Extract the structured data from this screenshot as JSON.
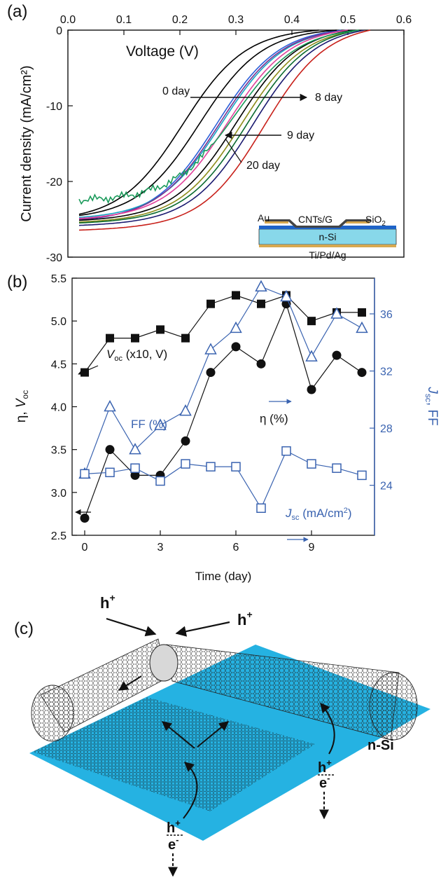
{
  "panel_labels": {
    "a": "(a)",
    "b": "(b)",
    "c": "(c)"
  },
  "colors": {
    "black": "#111111",
    "blue_axis": "#3a63b0",
    "substrate": "#88d8ea",
    "gold": "#d7a84f",
    "green": "#1a9a5a",
    "nsi_sheet": "#19aee0"
  },
  "chart_data": [
    {
      "type": "line",
      "panel": "(a)",
      "xlabel": "Voltage (V)",
      "ylabel": "Current density (mA/cm²)",
      "xlim": [
        0.0,
        0.6
      ],
      "ylim": [
        -30,
        0
      ],
      "x_ticks": [
        "0.0",
        "0.1",
        "0.2",
        "0.3",
        "0.4",
        "0.5",
        "0.6"
      ],
      "x_tick_values": [
        0.0,
        0.1,
        0.2,
        0.3,
        0.4,
        0.5,
        0.6
      ],
      "y_ticks": [
        "0",
        "-10",
        "-20",
        "-30"
      ],
      "y_tick_values": [
        0,
        -10,
        -20,
        -30
      ],
      "x_axis_position": "top",
      "grid": false,
      "annotations": [
        "0 day",
        "8 day",
        "9 day",
        "20 day"
      ],
      "inset": {
        "labels": {
          "au": "Au",
          "cnt": "CNTs/G",
          "sio2": "SiO",
          "sio2_sub": "2",
          "nsi": "n-Si",
          "contact": "Ti/Pd/Ag"
        }
      },
      "series": [
        {
          "color": "#000000",
          "jsc": -25.2,
          "v_mid": 0.205,
          "voc": 0.45,
          "noisy": false
        },
        {
          "color": "#2b5fd9",
          "jsc": -25.4,
          "v_mid": 0.265,
          "voc": 0.49,
          "noisy": false
        },
        {
          "color": "#16a4c4",
          "jsc": -25.0,
          "v_mid": 0.275,
          "voc": 0.5,
          "noisy": false
        },
        {
          "color": "#7a2f90",
          "jsc": -25.3,
          "v_mid": 0.27,
          "voc": 0.5,
          "noisy": false
        },
        {
          "color": "#e0409a",
          "jsc": -25.1,
          "v_mid": 0.285,
          "voc": 0.5,
          "noisy": false
        },
        {
          "color": "#000000",
          "jsc": -25.3,
          "v_mid": 0.3,
          "voc": 0.51,
          "noisy": false
        },
        {
          "color": "#000000",
          "jsc": -25.0,
          "v_mid": 0.235,
          "voc": 0.48,
          "noisy": false
        },
        {
          "color": "#8c8c1a",
          "jsc": -25.5,
          "v_mid": 0.31,
          "voc": 0.52,
          "noisy": false
        },
        {
          "color": "#0a6a30",
          "jsc": -25.6,
          "v_mid": 0.32,
          "voc": 0.52,
          "noisy": false
        },
        {
          "color": "#1a9a5a",
          "jsc": -22.6,
          "v_mid": 0.3,
          "voc": 0.52,
          "noisy": true
        },
        {
          "color": "#1a1a70",
          "jsc": -25.9,
          "v_mid": 0.33,
          "voc": 0.53,
          "noisy": false
        },
        {
          "color": "#c8201a",
          "jsc": -26.5,
          "v_mid": 0.35,
          "voc": 0.54,
          "noisy": false
        }
      ]
    },
    {
      "type": "line",
      "panel": "(b)",
      "xlabel": "Time (day)",
      "ylabel_left": "η, V_oc",
      "ylabel_right": "J_sc, FF",
      "xlim": [
        -0.5,
        11.5
      ],
      "ylim_left": [
        2.5,
        5.5
      ],
      "ylim_right": [
        20.5,
        38.5
      ],
      "x_ticks": [
        "0",
        "3",
        "6",
        "9"
      ],
      "x_tick_values": [
        0,
        3,
        6,
        9
      ],
      "y_ticks_left": [
        "2.5",
        "3.0",
        "3.5",
        "4.0",
        "4.5",
        "5.0",
        "5.5"
      ],
      "y_tick_values_left": [
        2.5,
        3.0,
        3.5,
        4.0,
        4.5,
        5.0,
        5.5
      ],
      "y_ticks_right": [
        "24",
        "28",
        "32",
        "36"
      ],
      "y_tick_values_right": [
        24,
        28,
        32,
        36
      ],
      "grid": false,
      "x": [
        0,
        1,
        2,
        3,
        4,
        5,
        6,
        7,
        8,
        9,
        10,
        11
      ],
      "series": [
        {
          "name": "V_oc (x10, V)",
          "axis": "left",
          "marker": "filled-square",
          "color": "#111111",
          "values": [
            4.4,
            4.8,
            4.8,
            4.9,
            4.8,
            5.2,
            5.3,
            5.2,
            5.3,
            5.0,
            5.1,
            5.1
          ]
        },
        {
          "name": "η (%)",
          "axis": "left",
          "marker": "filled-circle",
          "color": "#111111",
          "values": [
            2.7,
            3.5,
            3.2,
            3.2,
            3.6,
            4.4,
            4.7,
            4.5,
            5.2,
            4.2,
            4.6,
            4.4
          ]
        },
        {
          "name": "FF (%)",
          "axis": "right",
          "marker": "open-triangle",
          "color": "#3a63b0",
          "values": [
            24.8,
            29.5,
            26.5,
            28.2,
            29.2,
            33.5,
            35.0,
            37.9,
            37.2,
            33.0,
            36.0,
            35.0
          ]
        },
        {
          "name": "J_sc (mA/cm²)",
          "axis": "right",
          "marker": "open-square",
          "color": "#3a63b0",
          "values": [
            24.8,
            24.9,
            25.2,
            24.3,
            25.5,
            25.3,
            25.3,
            22.4,
            26.4,
            25.5,
            25.2,
            24.7
          ]
        }
      ],
      "legend_labels": {
        "voc_main": "V",
        "voc_sub": "oc",
        "voc_rest": " (x10, V)",
        "eta": "η (%)",
        "ff": "FF (%)",
        "jsc_main": "J",
        "jsc_sub": "sc",
        "jsc_rest": " (mA/cm",
        "jsc_sup": "2",
        "jsc_close": ")",
        "left_axis_a": "η, ",
        "left_axis_b": "V",
        "left_axis_sub": "oc",
        "right_axis_a": "J",
        "right_axis_sub": "sc",
        "right_axis_b": ", FF"
      }
    }
  ],
  "panel_c": {
    "labels": {
      "h": "h",
      "plus": "+",
      "e": "e",
      "minus": "-",
      "nsi": "n-Si"
    }
  }
}
